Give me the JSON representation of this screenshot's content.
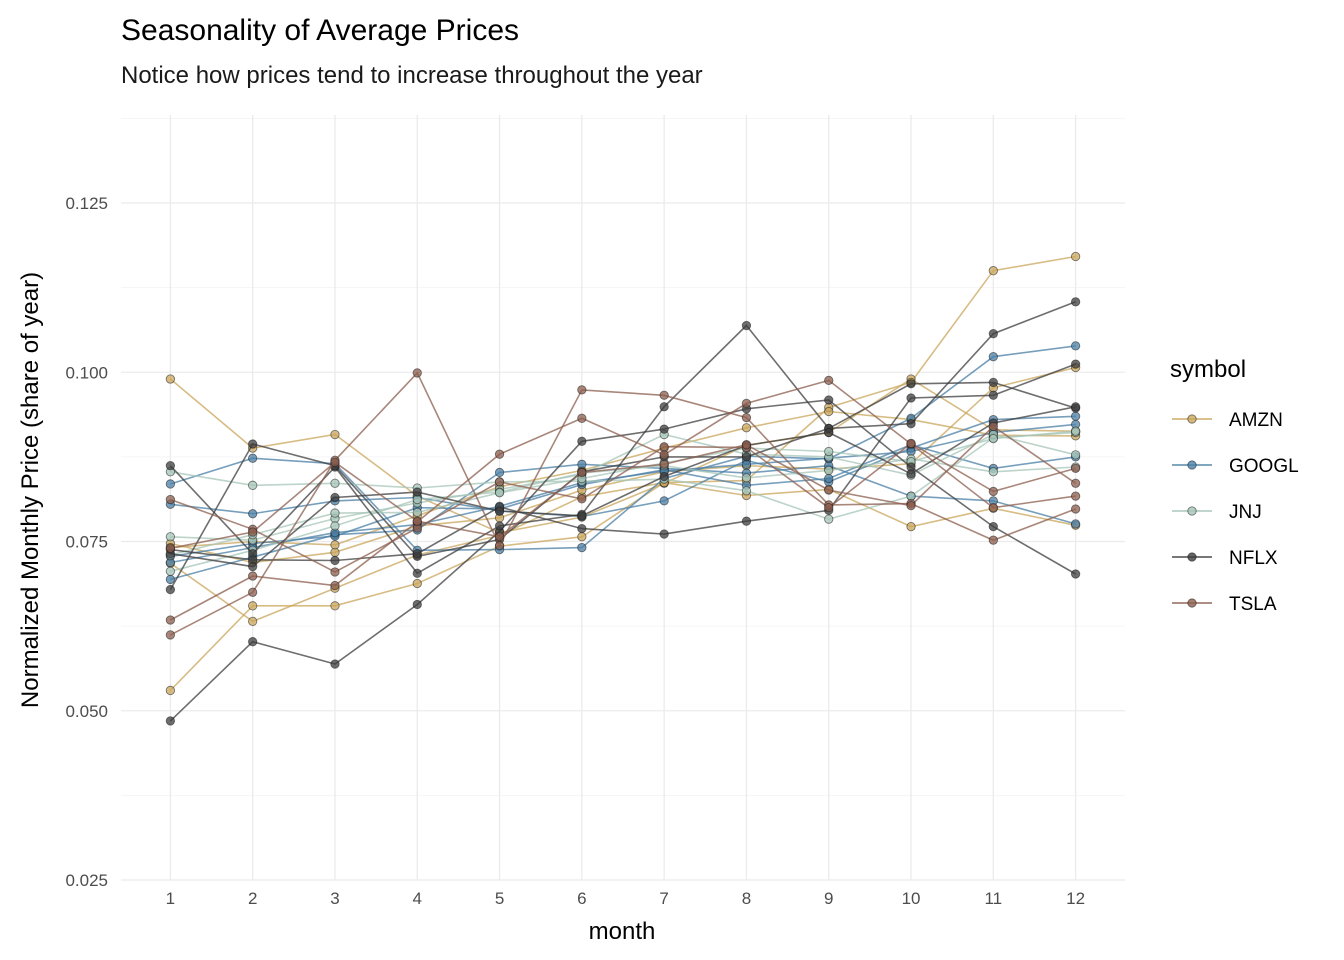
{
  "chart_data": {
    "type": "line",
    "title": "Seasonality of Average Prices",
    "subtitle": "Notice how prices tend to increase throughout the year",
    "xlabel": "month",
    "ylabel": "Normalized Monthly Price (share of year)",
    "x": [
      1,
      2,
      3,
      4,
      5,
      6,
      7,
      8,
      9,
      10,
      11,
      12
    ],
    "xlim": [
      0.4,
      12.6
    ],
    "ylim": [
      0.025,
      0.138
    ],
    "y_ticks": [
      0.025,
      0.05,
      0.075,
      0.1,
      0.125
    ],
    "y_tick_labels": [
      "0.025",
      "0.050",
      "0.075",
      "0.100",
      "0.125"
    ],
    "x_tick_labels": [
      "1",
      "2",
      "3",
      "4",
      "5",
      "6",
      "7",
      "8",
      "9",
      "10",
      "11",
      "12"
    ],
    "grid": true,
    "legend": {
      "title": "symbol",
      "position": "right"
    },
    "series": [
      {
        "name": "AMZN",
        "color": "#C9A65B",
        "lines": [
          [
            0.099,
            0.0888,
            0.0908,
            0.0817,
            0.0763,
            0.0786,
            0.0836,
            0.0892,
            0.0911,
            0.099,
            0.0915,
            0.0913
          ],
          [
            0.053,
            0.0655,
            0.0655,
            0.0688,
            0.0743,
            0.0757,
            0.0837,
            0.084,
            0.0948,
            0.0985,
            0.115,
            0.1171
          ],
          [
            0.0718,
            0.0632,
            0.0681,
            0.073,
            0.0759,
            0.0816,
            0.0837,
            0.0818,
            0.0827,
            0.0772,
            0.0799,
            0.0774
          ],
          [
            0.0747,
            0.0719,
            0.0734,
            0.0773,
            0.0785,
            0.0826,
            0.0853,
            0.0862,
            0.0857,
            0.0865,
            0.0977,
            0.1007
          ],
          [
            0.0741,
            0.075,
            0.0745,
            0.0788,
            0.0831,
            0.0855,
            0.0888,
            0.0918,
            0.0942,
            0.093,
            0.0907,
            0.0906
          ]
        ]
      },
      {
        "name": "GOOGL",
        "color": "#4A7FA6",
        "lines": [
          [
            0.0835,
            0.0873,
            0.0865,
            0.0737,
            0.0738,
            0.0741,
            0.0843,
            0.0876,
            0.0872,
            0.0932,
            0.1023,
            0.1039
          ],
          [
            0.0805,
            0.0791,
            0.081,
            0.0815,
            0.0795,
            0.0787,
            0.081,
            0.087,
            0.0838,
            0.0888,
            0.093,
            0.0935
          ],
          [
            0.0694,
            0.0727,
            0.076,
            0.0767,
            0.0852,
            0.0864,
            0.0858,
            0.0851,
            0.0862,
            0.0817,
            0.081,
            0.0776
          ],
          [
            0.0728,
            0.0747,
            0.0758,
            0.08,
            0.0798,
            0.0834,
            0.0856,
            0.0833,
            0.0843,
            0.0893,
            0.0858,
            0.0875
          ],
          [
            0.0719,
            0.0741,
            0.0763,
            0.0775,
            0.0802,
            0.0837,
            0.0854,
            0.0864,
            0.0873,
            0.0883,
            0.0911,
            0.0923
          ]
        ]
      },
      {
        "name": "JNJ",
        "color": "#A6C6B8",
        "lines": [
          [
            0.0853,
            0.0833,
            0.0836,
            0.0829,
            0.0838,
            0.0839,
            0.0842,
            0.0825,
            0.0783,
            0.0817,
            0.0903,
            0.0911
          ],
          [
            0.0757,
            0.0752,
            0.0784,
            0.0807,
            0.0827,
            0.0849,
            0.0908,
            0.0879,
            0.0875,
            0.0848,
            0.0908,
            0.0878
          ],
          [
            0.0706,
            0.0737,
            0.0773,
            0.0812,
            0.0823,
            0.0851,
            0.0862,
            0.0844,
            0.0855,
            0.0872,
            0.0853,
            0.086
          ],
          [
            0.073,
            0.076,
            0.0792,
            0.0793,
            0.0822,
            0.0843,
            0.0866,
            0.0888,
            0.0883,
            0.0868,
            0.0902,
            0.0913
          ]
        ]
      },
      {
        "name": "NFLX",
        "color": "#3D3D3D",
        "lines": [
          [
            0.0485,
            0.0602,
            0.0569,
            0.0657,
            0.0765,
            0.0898,
            0.0916,
            0.0946,
            0.0959,
            0.086,
            0.0772,
            0.0702
          ],
          [
            0.0862,
            0.0732,
            0.086,
            0.0703,
            0.0773,
            0.079,
            0.0949,
            0.1069,
            0.0917,
            0.0924,
            0.1057,
            0.1104
          ],
          [
            0.0679,
            0.0894,
            0.0862,
            0.0728,
            0.0753,
            0.0853,
            0.0875,
            0.0875,
            0.0917,
            0.0983,
            0.0985,
            0.0947
          ],
          [
            0.0738,
            0.0723,
            0.0722,
            0.0732,
            0.0801,
            0.0769,
            0.0761,
            0.078,
            0.0796,
            0.0962,
            0.0966,
            0.1012
          ],
          [
            0.0732,
            0.0713,
            0.0815,
            0.0823,
            0.0795,
            0.0788,
            0.0846,
            0.0892,
            0.0911,
            0.085,
            0.0925,
            0.0949
          ]
        ]
      },
      {
        "name": "TSLA",
        "color": "#8C5E4E",
        "lines": [
          [
            0.0612,
            0.0675,
            0.087,
            0.0999,
            0.0744,
            0.0974,
            0.0966,
            0.0933,
            0.0804,
            0.0806,
            0.0752,
            0.0798
          ],
          [
            0.0634,
            0.0699,
            0.0685,
            0.0779,
            0.0879,
            0.0932,
            0.0878,
            0.0954,
            0.0988,
            0.0894,
            0.08,
            0.0817
          ],
          [
            0.0812,
            0.0768,
            0.0705,
            0.077,
            0.0838,
            0.0813,
            0.089,
            0.0889,
            0.08,
            0.0895,
            0.0824,
            0.0858
          ],
          [
            0.074,
            0.0764,
            0.0867,
            0.078,
            0.0757,
            0.0852,
            0.0864,
            0.0893,
            0.0826,
            0.0803,
            0.092,
            0.0836
          ]
        ]
      }
    ]
  }
}
